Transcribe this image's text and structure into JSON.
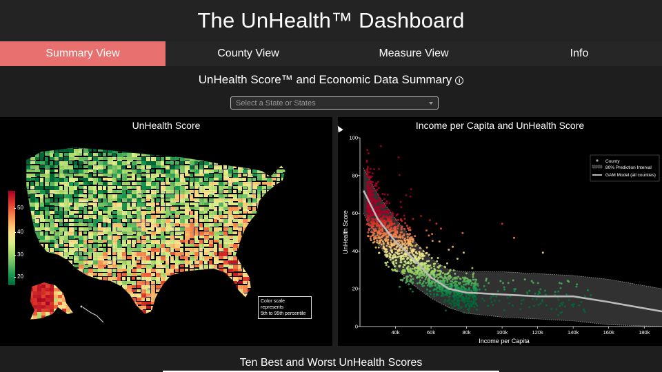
{
  "header": {
    "title": "The UnHealth™ Dashboard"
  },
  "tabs": [
    {
      "label": "Summary View",
      "active": true
    },
    {
      "label": "County View",
      "active": false
    },
    {
      "label": "Measure View",
      "active": false
    },
    {
      "label": "Info",
      "active": false
    }
  ],
  "summary": {
    "subtitle": "UnHealth Score™ and Economic Data Summary",
    "state_select": {
      "placeholder": "Select a State or States"
    }
  },
  "map_panel": {
    "title": "UnHealth Score",
    "colorbar_ticks": [
      "50",
      "40",
      "30",
      "20"
    ],
    "colorbar_values": [
      50,
      40,
      30,
      20
    ],
    "note_line1": "Color scale represents",
    "note_line2": "5th to 95th percentile",
    "colors": {
      "low": "#006837",
      "mid": "#fee08b",
      "high": "#a50026"
    }
  },
  "scatter_panel": {
    "title": "Income per Capita and UnHealth Score"
  },
  "chart_data": {
    "type": "scatter",
    "title": "Income per Capita and UnHealth Score",
    "xlabel": "Income per Capita",
    "ylabel": "UnHealth Score",
    "xlim": [
      20000,
      190000
    ],
    "ylim": [
      0,
      100
    ],
    "x_ticks": [
      "40k",
      "60k",
      "80k",
      "100k",
      "120k",
      "140k",
      "160k",
      "180k"
    ],
    "x_tick_values": [
      40000,
      60000,
      80000,
      100000,
      120000,
      140000,
      160000,
      180000
    ],
    "y_ticks": [
      "0",
      "20",
      "40",
      "60",
      "80",
      "100"
    ],
    "y_tick_values": [
      0,
      20,
      40,
      60,
      80,
      100
    ],
    "grid": false,
    "legend_position": "top-right",
    "legend": {
      "county": "County",
      "interval": "80% Prediction Interval",
      "model": "GAM Model (all counties)"
    },
    "gam_model": {
      "x": [
        22000,
        30000,
        40000,
        50000,
        60000,
        70000,
        80000,
        100000,
        120000,
        140000,
        160000,
        190000
      ],
      "y": [
        72,
        57,
        45,
        36,
        26,
        20,
        18,
        17,
        16,
        16,
        13,
        8
      ]
    },
    "interval_upper": {
      "x": [
        22000,
        30000,
        40000,
        50000,
        60000,
        70000,
        80000,
        100000,
        120000,
        140000,
        160000,
        190000
      ],
      "y": [
        84,
        70,
        57,
        46,
        36,
        30,
        29,
        29,
        28,
        27,
        25,
        20
      ]
    },
    "interval_lower": {
      "x": [
        22000,
        30000,
        40000,
        50000,
        60000,
        70000,
        80000,
        100000,
        120000,
        140000,
        160000,
        190000
      ],
      "y": [
        60,
        44,
        31,
        22,
        15,
        10,
        7,
        5,
        4,
        3,
        1,
        -3
      ]
    },
    "colors": {
      "model": "#bbbbbb",
      "interval_fill": "#3a3a3a",
      "low": "#1a9850",
      "mid": "#fee08b",
      "high": "#d73027"
    }
  },
  "bottom": {
    "title": "Ten Best and Worst UnHealth Scores"
  }
}
